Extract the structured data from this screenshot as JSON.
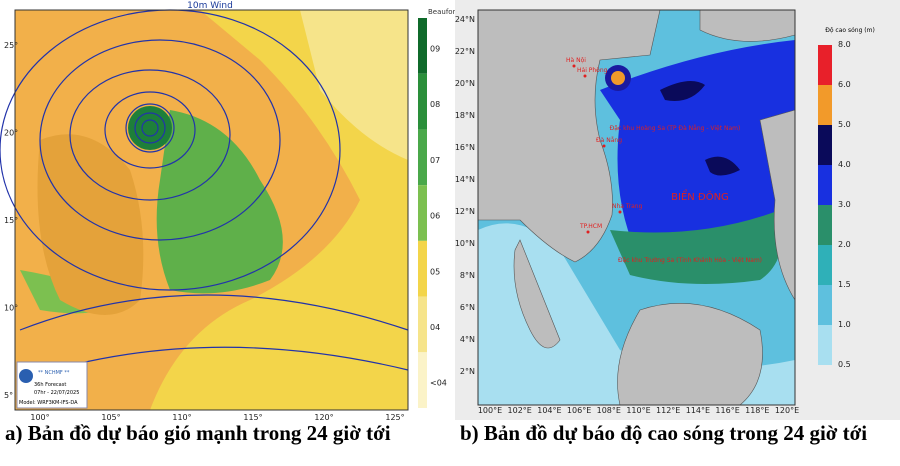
{
  "left_map": {
    "title": "10m Wind",
    "unit": "Beaufort",
    "lat_labels": [
      "25°",
      "20°",
      "15°",
      "10°",
      "5°"
    ],
    "lon_labels": [
      "100°",
      "105°",
      "110°",
      "115°",
      "120°",
      "125°"
    ],
    "legend_labels": [
      "09",
      "08",
      "07",
      "06",
      "05",
      "04",
      "<04"
    ],
    "logo": {
      "org": "** NCHMF **",
      "forecast": "36h Forecast",
      "time": "07hr - 22/07/2025",
      "model": "Model: WRF3KM-IFS-DA"
    },
    "caption": "a) Bản đồ dự báo gió mạnh trong 24 giờ tới"
  },
  "right_map": {
    "lat_labels": [
      "24°N",
      "22°N",
      "20°N",
      "18°N",
      "16°N",
      "14°N",
      "12°N",
      "10°N",
      "8°N",
      "6°N",
      "4°N",
      "2°N"
    ],
    "lon_labels": [
      "100°E",
      "102°E",
      "104°E",
      "106°E",
      "108°E",
      "110°E",
      "112°E",
      "114°E",
      "116°E",
      "118°E",
      "120°E"
    ],
    "legend_title": "Độ cao sóng (m)",
    "legend_labels": [
      "8.0",
      "6.0",
      "5.0",
      "4.0",
      "3.0",
      "2.0",
      "1.5",
      "1.0",
      "0.5"
    ],
    "places": [
      "Hà Nội",
      "Hải Phòng",
      "Đà Nẵng",
      "Nha Trang",
      "TP.HCM"
    ],
    "sea_name": "BIỂN ĐÔNG",
    "hoang_sa": "Đặc khu Hoàng Sa (TP Đà Nẵng - Việt Nam)",
    "truong_sa": "Đặc khu Trường Sa (Tỉnh Khánh Hòa - Việt Nam)",
    "caption": "b) Bản đồ dự báo độ cao sóng trong 24 giờ tới"
  }
}
